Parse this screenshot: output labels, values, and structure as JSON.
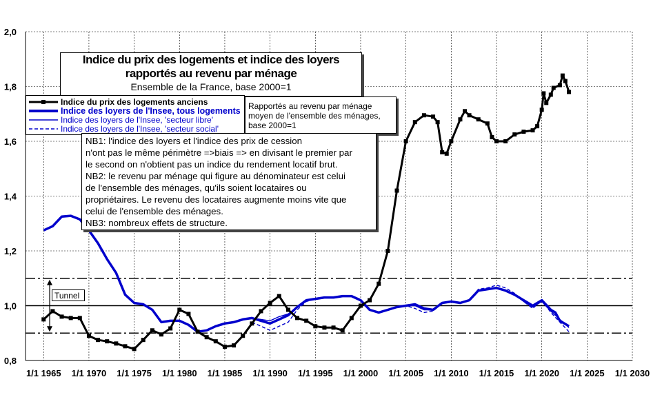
{
  "chart_data": {
    "type": "line",
    "title": "Indice du prix des logements et indice des loyers rapportés au revenu par ménage",
    "subtitle": "Ensemble de la France, base 2000=1",
    "ylim": [
      0.8,
      2.0
    ],
    "xlim": [
      1963,
      2030
    ],
    "y_ticks": [
      "0,8",
      "1,0",
      "1,2",
      "1,4",
      "1,6",
      "1,8",
      "2,0"
    ],
    "x_ticks": [
      "1/1 1965",
      "1/1 1970",
      "1/1 1975",
      "1/1 1980",
      "1/1 1985",
      "1/1 1990",
      "1/1 1995",
      "1/1 2000",
      "1/1 2005",
      "1/1 2010",
      "1/1 2015",
      "1/1 2020",
      "1/1 2025",
      "1/1 2030"
    ],
    "x_tick_years": [
      1965,
      1970,
      1975,
      1980,
      1985,
      1990,
      1995,
      2000,
      2005,
      2010,
      2015,
      2020,
      2025,
      2030
    ],
    "reference_lines": [
      {
        "value": 1.0,
        "style": "solid"
      },
      {
        "value": 1.1,
        "style": "dashdot"
      },
      {
        "value": 0.9,
        "style": "dashdot"
      }
    ],
    "tunnel_label": "Tunnel",
    "series": [
      {
        "name": "Indice du prix des logements anciens",
        "color": "#000000",
        "style": "solid-marker",
        "points": [
          [
            1965,
            0.95
          ],
          [
            1966,
            0.98
          ],
          [
            1967,
            0.96
          ],
          [
            1968,
            0.955
          ],
          [
            1969,
            0.955
          ],
          [
            1970,
            0.89
          ],
          [
            1971,
            0.875
          ],
          [
            1972,
            0.87
          ],
          [
            1973,
            0.862
          ],
          [
            1974,
            0.852
          ],
          [
            1975,
            0.842
          ],
          [
            1976,
            0.875
          ],
          [
            1977,
            0.91
          ],
          [
            1978,
            0.895
          ],
          [
            1979,
            0.917
          ],
          [
            1980,
            0.985
          ],
          [
            1981,
            0.97
          ],
          [
            1982,
            0.905
          ],
          [
            1983,
            0.885
          ],
          [
            1984,
            0.87
          ],
          [
            1985,
            0.85
          ],
          [
            1986,
            0.855
          ],
          [
            1987,
            0.89
          ],
          [
            1988,
            0.935
          ],
          [
            1989,
            0.98
          ],
          [
            1990,
            1.01
          ],
          [
            1991,
            1.035
          ],
          [
            1992,
            0.985
          ],
          [
            1993,
            0.955
          ],
          [
            1994,
            0.945
          ],
          [
            1995,
            0.925
          ],
          [
            1996,
            0.92
          ],
          [
            1997,
            0.92
          ],
          [
            1998,
            0.91
          ],
          [
            1999,
            0.955
          ],
          [
            2000,
            1.0
          ],
          [
            2001,
            1.02
          ],
          [
            2002,
            1.08
          ],
          [
            2003,
            1.2
          ],
          [
            2004,
            1.42
          ],
          [
            2005,
            1.6
          ],
          [
            2006,
            1.67
          ],
          [
            2007,
            1.695
          ],
          [
            2008,
            1.69
          ],
          [
            2008.5,
            1.67
          ],
          [
            2009,
            1.56
          ],
          [
            2009.5,
            1.555
          ],
          [
            2010,
            1.6
          ],
          [
            2011,
            1.68
          ],
          [
            2011.5,
            1.71
          ],
          [
            2012,
            1.695
          ],
          [
            2013,
            1.68
          ],
          [
            2014,
            1.665
          ],
          [
            2014.5,
            1.615
          ],
          [
            2015,
            1.6
          ],
          [
            2016,
            1.6
          ],
          [
            2017,
            1.625
          ],
          [
            2018,
            1.635
          ],
          [
            2019,
            1.64
          ],
          [
            2019.5,
            1.655
          ],
          [
            2020,
            1.715
          ],
          [
            2020.2,
            1.775
          ],
          [
            2020.5,
            1.74
          ],
          [
            2021,
            1.77
          ],
          [
            2021.3,
            1.795
          ],
          [
            2022,
            1.805
          ],
          [
            2022.3,
            1.84
          ],
          [
            2022.6,
            1.82
          ],
          [
            2023,
            1.78
          ]
        ]
      },
      {
        "name": "Indice des loyers de l'Insee, tous logements",
        "color": "#0000cc",
        "style": "thick",
        "points": [
          [
            1965,
            1.275
          ],
          [
            1966,
            1.29
          ],
          [
            1967,
            1.325
          ],
          [
            1968,
            1.328
          ],
          [
            1969,
            1.315
          ],
          [
            1970,
            1.275
          ],
          [
            1971,
            1.228
          ],
          [
            1972,
            1.17
          ],
          [
            1973,
            1.12
          ],
          [
            1974,
            1.04
          ],
          [
            1975,
            1.01
          ],
          [
            1976,
            1.005
          ],
          [
            1977,
            0.985
          ],
          [
            1978,
            0.94
          ],
          [
            1979,
            0.945
          ],
          [
            1980,
            0.945
          ],
          [
            1981,
            0.93
          ],
          [
            1982,
            0.905
          ],
          [
            1983,
            0.91
          ],
          [
            1984,
            0.925
          ],
          [
            1985,
            0.935
          ],
          [
            1986,
            0.94
          ],
          [
            1987,
            0.95
          ],
          [
            1988,
            0.955
          ],
          [
            1989,
            0.945
          ],
          [
            1990,
            0.935
          ],
          [
            1991,
            0.95
          ],
          [
            1992,
            0.965
          ],
          [
            1993,
            0.995
          ],
          [
            1994,
            1.02
          ],
          [
            1995,
            1.025
          ],
          [
            1996,
            1.03
          ],
          [
            1997,
            1.03
          ],
          [
            1998,
            1.035
          ],
          [
            1999,
            1.035
          ],
          [
            2000,
            1.02
          ],
          [
            2001,
            0.985
          ],
          [
            2002,
            0.975
          ],
          [
            2003,
            0.985
          ],
          [
            2004,
            0.995
          ],
          [
            2005,
            1.0
          ],
          [
            2006,
            1.005
          ],
          [
            2007,
            0.99
          ],
          [
            2008,
            0.985
          ],
          [
            2009,
            1.01
          ],
          [
            2010,
            1.015
          ],
          [
            2011,
            1.01
          ],
          [
            2012,
            1.02
          ],
          [
            2013,
            1.055
          ],
          [
            2014,
            1.06
          ],
          [
            2015,
            1.065
          ],
          [
            2016,
            1.055
          ],
          [
            2017,
            1.04
          ],
          [
            2018,
            1.02
          ],
          [
            2019,
            1.0
          ],
          [
            2020,
            1.02
          ],
          [
            2021,
            0.985
          ],
          [
            2021.5,
            0.975
          ],
          [
            2022,
            0.945
          ],
          [
            2023,
            0.925
          ]
        ]
      },
      {
        "name": "Indice des loyers de l'Insee, 'secteur libre'",
        "color": "#0000cc",
        "style": "thin",
        "points": [
          [
            1988,
            0.955
          ],
          [
            1989,
            0.95
          ],
          [
            1990,
            0.945
          ],
          [
            1991,
            0.96
          ],
          [
            1992,
            0.97
          ],
          [
            1993,
            0.995
          ],
          [
            1994,
            1.02
          ],
          [
            1995,
            1.025
          ],
          [
            1996,
            1.03
          ],
          [
            1997,
            1.03
          ],
          [
            1998,
            1.035
          ],
          [
            1999,
            1.035
          ],
          [
            2000,
            1.02
          ],
          [
            2001,
            0.985
          ],
          [
            2002,
            0.975
          ],
          [
            2003,
            0.985
          ],
          [
            2004,
            0.995
          ],
          [
            2005,
            1.0
          ],
          [
            2006,
            1.0
          ],
          [
            2007,
            0.985
          ],
          [
            2008,
            0.985
          ],
          [
            2009,
            1.01
          ],
          [
            2010,
            1.015
          ],
          [
            2011,
            1.01
          ],
          [
            2012,
            1.02
          ],
          [
            2013,
            1.055
          ],
          [
            2014,
            1.06
          ],
          [
            2015,
            1.065
          ],
          [
            2016,
            1.055
          ],
          [
            2017,
            1.04
          ],
          [
            2018,
            1.015
          ],
          [
            2019,
            0.995
          ],
          [
            2020,
            1.015
          ],
          [
            2021,
            0.98
          ],
          [
            2022,
            0.95
          ],
          [
            2023,
            0.92
          ]
        ]
      },
      {
        "name": "Indice des loyers de l'Insee, 'secteur social'",
        "color": "#0000cc",
        "style": "dashed",
        "points": [
          [
            1988,
            0.94
          ],
          [
            1989,
            0.925
          ],
          [
            1990,
            0.91
          ],
          [
            1991,
            0.925
          ],
          [
            1992,
            0.94
          ],
          [
            1993,
            0.985
          ],
          [
            1994,
            1.015
          ],
          [
            1995,
            1.025
          ],
          [
            1996,
            1.03
          ],
          [
            1997,
            1.03
          ],
          [
            1998,
            1.035
          ],
          [
            1999,
            1.035
          ],
          [
            2000,
            1.02
          ],
          [
            2001,
            0.985
          ],
          [
            2002,
            0.975
          ],
          [
            2003,
            0.985
          ],
          [
            2004,
            0.995
          ],
          [
            2005,
            1.0
          ],
          [
            2006,
            0.99
          ],
          [
            2007,
            0.975
          ],
          [
            2008,
            0.98
          ],
          [
            2009,
            1.01
          ],
          [
            2010,
            1.015
          ],
          [
            2011,
            1.01
          ],
          [
            2012,
            1.02
          ],
          [
            2013,
            1.06
          ],
          [
            2014,
            1.065
          ],
          [
            2015,
            1.075
          ],
          [
            2016,
            1.065
          ],
          [
            2017,
            1.045
          ],
          [
            2018,
            1.015
          ],
          [
            2019,
            0.99
          ],
          [
            2020,
            1.02
          ],
          [
            2021,
            0.975
          ],
          [
            2022,
            0.94
          ],
          [
            2023,
            0.905
          ]
        ]
      }
    ]
  },
  "title_box": {
    "line1": "Indice du prix des logements et indice des loyers",
    "line2": "rapportés au revenu par ménage",
    "line3": "Ensemble de la France, base 2000=1"
  },
  "legend": [
    "Indice du prix des logements anciens",
    "Indice des loyers de l'Insee, tous logements",
    "Indice des loyers de l'Insee, 'secteur libre'",
    "Indice des loyers de l'Insee, 'secteur social'"
  ],
  "subnote": {
    "line1": "Rapportés au revenu par ménage",
    "line2": "moyen de l'ensemble des ménages,",
    "line3": "base 2000=1"
  },
  "notes": [
    "NB1: l'indice des loyers et l'indice des prix de cession",
    "n'ont pas le même périmètre =>biais => en divisant le premier par",
    "le second on n'obtient pas un indice du rendement locatif brut.",
    "NB2: le revenu par ménage qui figure au dénominateur est celui",
    "de l'ensemble des ménages, qu'ils soient locataires ou",
    "propriétaires.  Le revenu des locataires augmente moins vite que",
    "celui de l'ensemble des ménages.",
    "NB3: nombreux effets de structure."
  ]
}
